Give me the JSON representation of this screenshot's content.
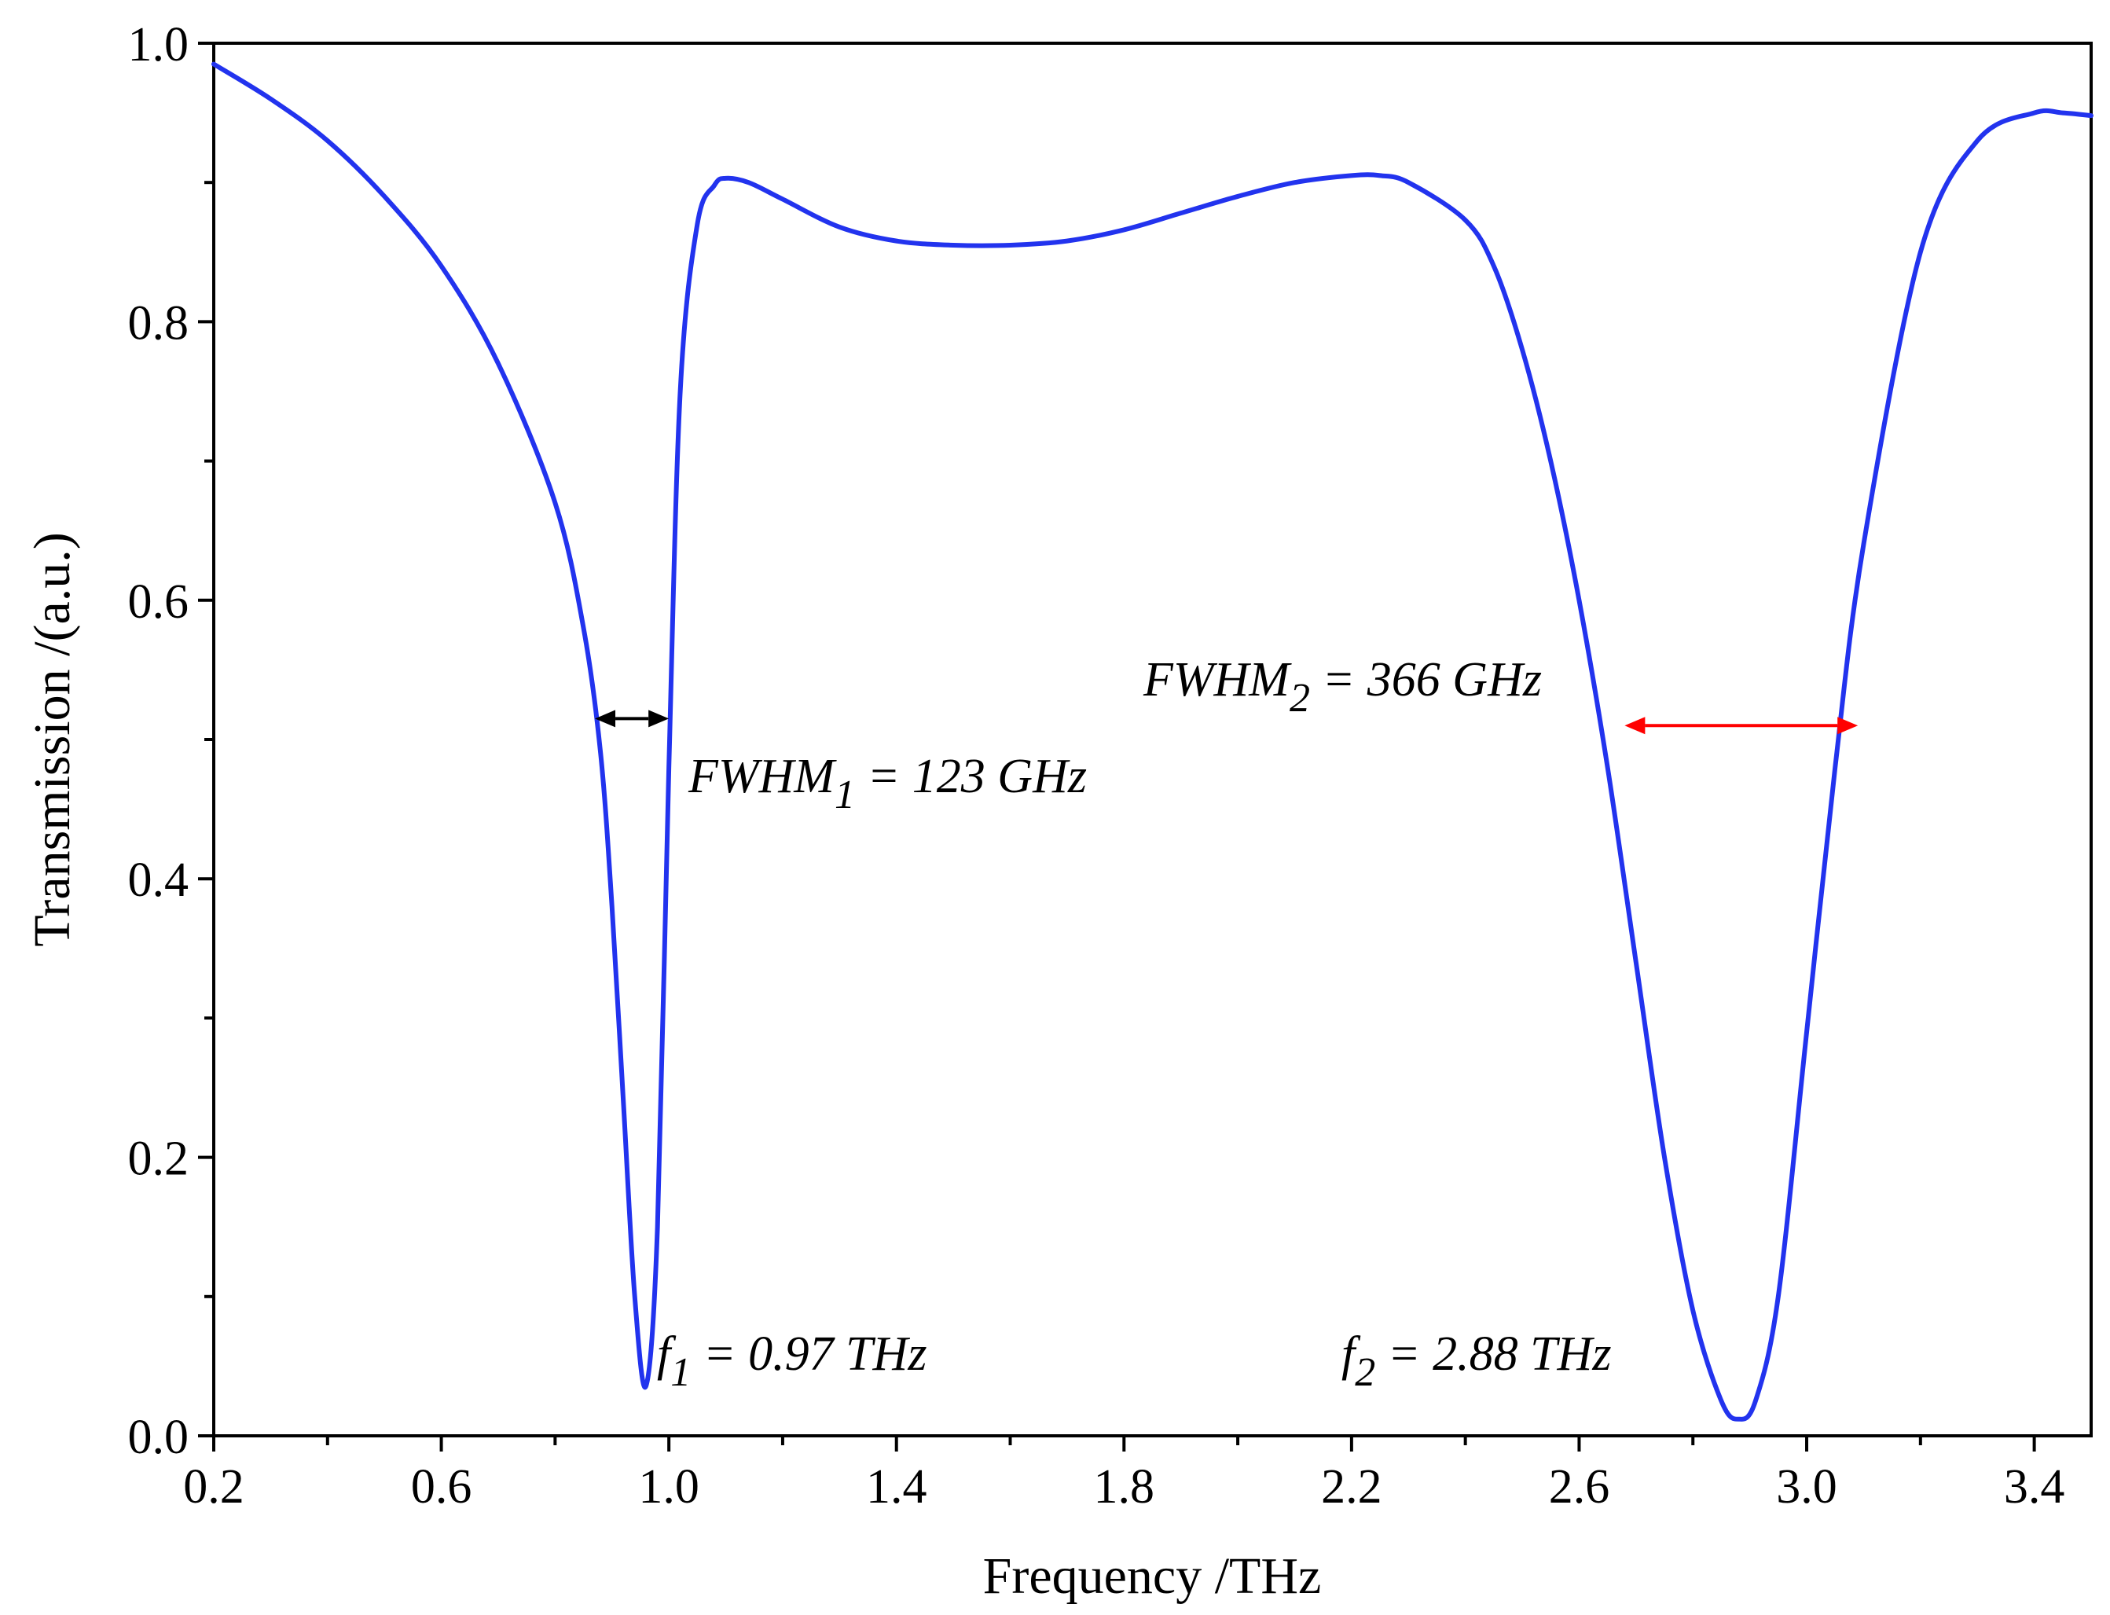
{
  "chart_data": {
    "type": "line",
    "title": "",
    "xlabel": "Frequency /THz",
    "ylabel": "Transmission /(a.u.)",
    "xlim": [
      0.2,
      3.5
    ],
    "ylim": [
      0.0,
      1.0
    ],
    "x_ticks": [
      0.2,
      0.6,
      1.0,
      1.4,
      1.8,
      2.2,
      2.6,
      3.0,
      3.4
    ],
    "x_tick_labels": [
      "0.2",
      "0.6",
      "1.0",
      "1.4",
      "1.8",
      "2.2",
      "2.6",
      "3.0",
      "3.4"
    ],
    "y_ticks": [
      0.0,
      0.2,
      0.4,
      0.6,
      0.8,
      1.0
    ],
    "y_tick_labels": [
      "0.0",
      "0.2",
      "0.4",
      "0.6",
      "0.8",
      "1.0"
    ],
    "grid": false,
    "series": [
      {
        "name": "Transmission",
        "color": "#2233ee",
        "x": [
          0.2,
          0.3,
          0.4,
          0.5,
          0.6,
          0.7,
          0.8,
          0.85,
          0.88,
          0.9,
          0.92,
          0.94,
          0.96,
          0.98,
          1.0,
          1.02,
          1.05,
          1.08,
          1.1,
          1.14,
          1.2,
          1.3,
          1.4,
          1.5,
          1.6,
          1.7,
          1.8,
          1.9,
          2.0,
          2.1,
          2.2,
          2.25,
          2.3,
          2.4,
          2.45,
          2.5,
          2.55,
          2.6,
          2.65,
          2.7,
          2.75,
          2.8,
          2.85,
          2.88,
          2.91,
          2.95,
          3.0,
          3.05,
          3.1,
          3.2,
          3.3,
          3.4,
          3.45,
          3.5
        ],
        "values": [
          0.985,
          0.96,
          0.93,
          0.89,
          0.84,
          0.77,
          0.67,
          0.58,
          0.49,
          0.38,
          0.24,
          0.1,
          0.036,
          0.15,
          0.48,
          0.75,
          0.87,
          0.898,
          0.903,
          0.9,
          0.888,
          0.868,
          0.858,
          0.855,
          0.855,
          0.858,
          0.866,
          0.878,
          0.89,
          0.9,
          0.905,
          0.905,
          0.9,
          0.873,
          0.84,
          0.78,
          0.7,
          0.6,
          0.48,
          0.34,
          0.2,
          0.09,
          0.025,
          0.012,
          0.025,
          0.1,
          0.29,
          0.48,
          0.64,
          0.85,
          0.93,
          0.95,
          0.95,
          0.948
        ]
      }
    ],
    "annotations": {
      "fwhm1": {
        "label": "FWHM",
        "subscript": "1",
        "value_text": " = 123 GHz",
        "color": "#000000",
        "x_start": 0.87,
        "x_end": 1.0,
        "y": 0.515
      },
      "fwhm2": {
        "label": "FWHM",
        "subscript": "2",
        "value_text": " = 366 GHz",
        "color": "#ff0000",
        "x_start": 2.68,
        "x_end": 3.09,
        "y": 0.51
      },
      "f1": {
        "label": "f",
        "subscript": "1",
        "value_text": " = 0.97 THz",
        "color": "#000000"
      },
      "f2": {
        "label": "f",
        "subscript": "2",
        "value_text": " = 2.88 THz",
        "color": "#ff0000"
      }
    }
  }
}
